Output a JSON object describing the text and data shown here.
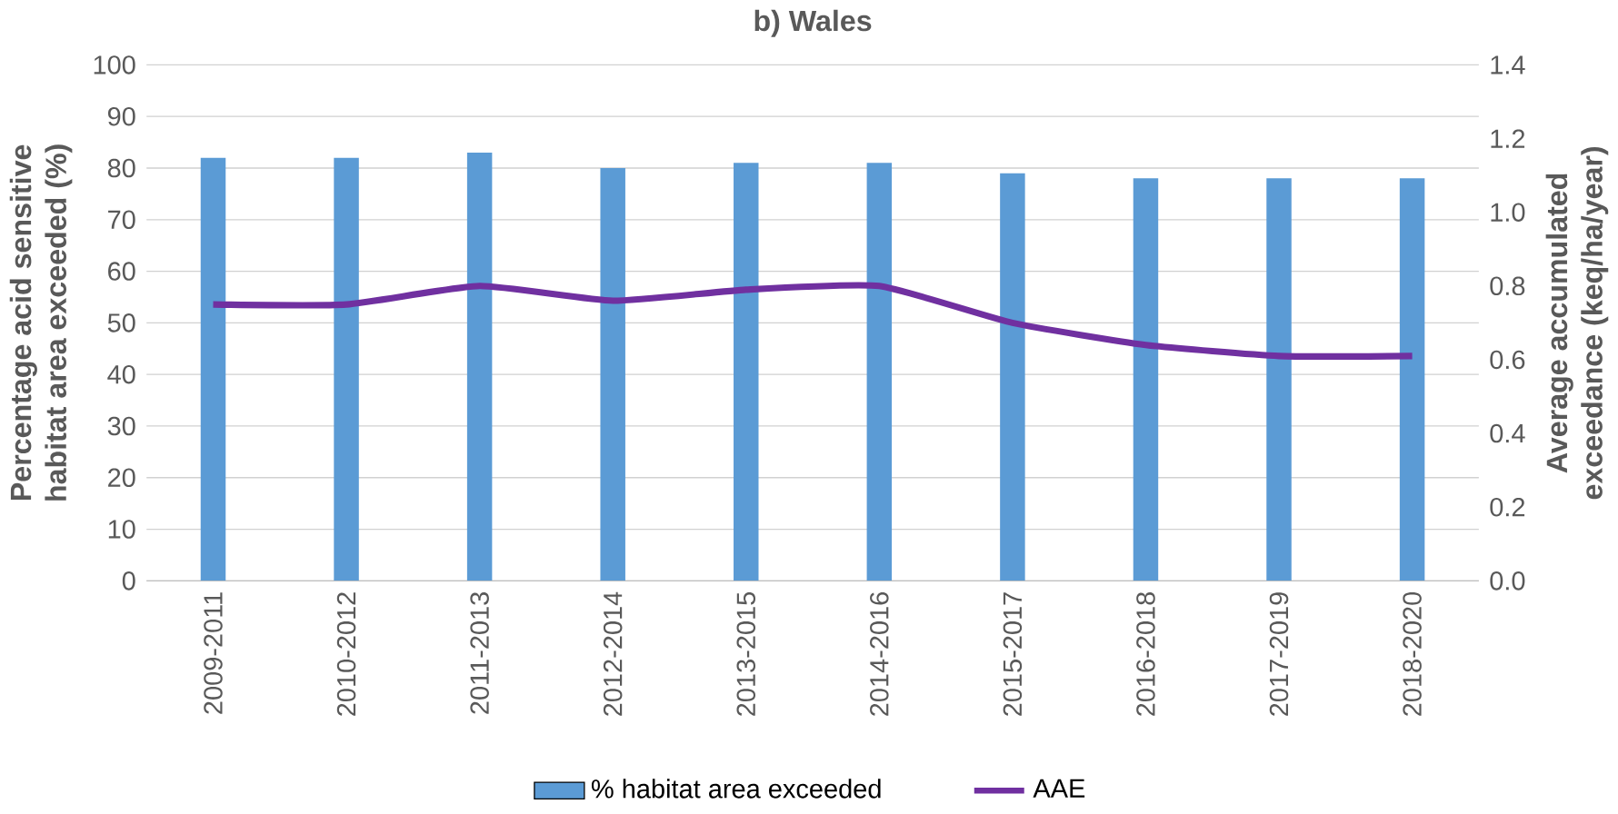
{
  "chart_data": {
    "type": "bar",
    "title": "b) Wales",
    "ylabel": "Percentage acid sensitive habitat area exceeded (%)",
    "y2label": "Average accumulated exceedance (keq/ha/year)",
    "categories": [
      "2009-2011",
      "2010-2012",
      "2011-2013",
      "2012-2014",
      "2013-2015",
      "2014-2016",
      "2015-2017",
      "2016-2018",
      "2017-2019",
      "2018-2020"
    ],
    "series": [
      {
        "name": "% habitat area exceeded",
        "color": "#5b9bd5",
        "values": [
          82,
          82,
          83,
          80,
          81,
          81,
          79,
          78,
          78,
          78
        ]
      },
      {
        "name": "AAE",
        "type": "line",
        "axis": "y2",
        "color": "#7030a0",
        "values": [
          0.75,
          0.75,
          0.8,
          0.76,
          0.79,
          0.8,
          0.7,
          0.64,
          0.61,
          0.61
        ]
      }
    ],
    "ylim": [
      0,
      100
    ],
    "yticks": [
      0,
      10,
      20,
      30,
      40,
      50,
      60,
      70,
      80,
      90,
      100
    ],
    "y2lim": [
      0,
      1.4
    ],
    "y2ticks": [
      {
        "value": 0,
        "label": "0.0"
      },
      {
        "value": 0.2,
        "label": "0.2"
      },
      {
        "value": 0.4,
        "label": "0.4"
      },
      {
        "value": 0.6,
        "label": "0.6"
      },
      {
        "value": 0.8,
        "label": "0.8"
      },
      {
        "value": 1.0,
        "label": "1.0"
      },
      {
        "value": 1.2,
        "label": "1.2"
      },
      {
        "value": 1.4,
        "label": "1.4"
      }
    ],
    "grid": "y",
    "legend": "bottom",
    "marker": "none"
  }
}
